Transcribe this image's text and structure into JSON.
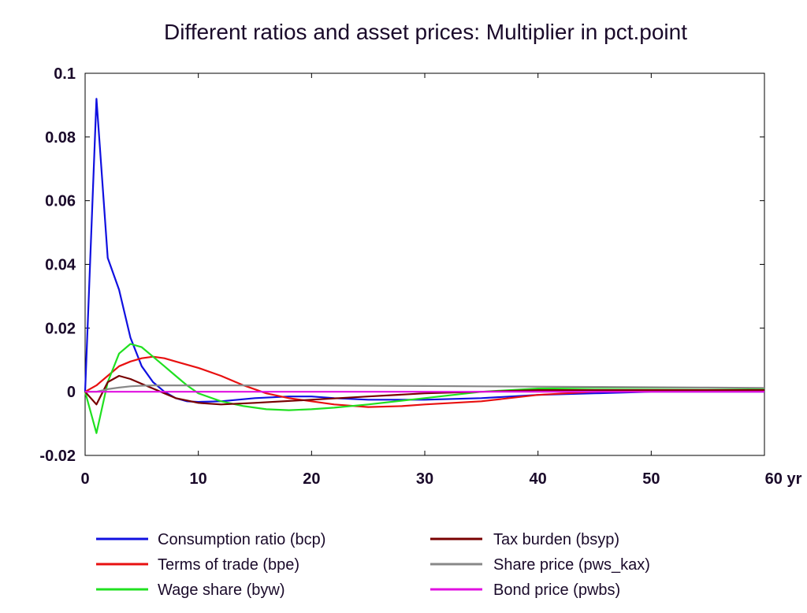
{
  "chart_data": {
    "type": "line",
    "title": "Different ratios and asset prices: Multiplier in pct.point",
    "xlabel": "",
    "ylabel": "",
    "xlim": [
      0,
      60
    ],
    "ylim": [
      -0.02,
      0.1
    ],
    "x_ticks": [
      0,
      10,
      20,
      30,
      40,
      50,
      60
    ],
    "x_tick_labels": [
      "0",
      "10",
      "20",
      "30",
      "40",
      "50",
      "60 yr"
    ],
    "y_ticks": [
      -0.02,
      0,
      0.02,
      0.04,
      0.06,
      0.08,
      0.1
    ],
    "y_tick_labels": [
      "-0.02",
      "0",
      "0.02",
      "0.04",
      "0.06",
      "0.08",
      "0.1"
    ],
    "grid": false,
    "legend_position": "bottom",
    "series": [
      {
        "name": "Consumption ratio (bcp)",
        "color": "#1010e0",
        "x": [
          0,
          1,
          2,
          3,
          4,
          5,
          6,
          7,
          8,
          9,
          10,
          12,
          15,
          18,
          20,
          22,
          25,
          30,
          35,
          40,
          45,
          50,
          55,
          60
        ],
        "values": [
          0,
          0.092,
          0.042,
          0.032,
          0.017,
          0.008,
          0.003,
          0.0,
          -0.002,
          -0.003,
          -0.0032,
          -0.003,
          -0.002,
          -0.0015,
          -0.0015,
          -0.002,
          -0.0025,
          -0.0025,
          -0.002,
          -0.001,
          -0.0005,
          0,
          0,
          0
        ]
      },
      {
        "name": "Terms of trade (bpe)",
        "color": "#e81010",
        "x": [
          0,
          1,
          2,
          3,
          4,
          5,
          6,
          7,
          8,
          10,
          12,
          14,
          16,
          18,
          20,
          22,
          25,
          28,
          30,
          35,
          40,
          45,
          50,
          55,
          60
        ],
        "values": [
          0,
          0.002,
          0.005,
          0.008,
          0.0095,
          0.0105,
          0.011,
          0.0105,
          0.0095,
          0.0075,
          0.005,
          0.002,
          -0.0005,
          -0.002,
          -0.003,
          -0.004,
          -0.0048,
          -0.0045,
          -0.004,
          -0.003,
          -0.001,
          0,
          0.0005,
          0.0005,
          0.0005
        ]
      },
      {
        "name": "Wage share (byw)",
        "color": "#20e020",
        "x": [
          0,
          1,
          2,
          3,
          4,
          5,
          6,
          7,
          8,
          9,
          10,
          12,
          14,
          16,
          18,
          20,
          22,
          25,
          30,
          35,
          40,
          45,
          50,
          55,
          60
        ],
        "values": [
          0,
          -0.013,
          0.003,
          0.012,
          0.015,
          0.014,
          0.011,
          0.008,
          0.005,
          0.002,
          -0.0005,
          -0.003,
          -0.0045,
          -0.0055,
          -0.0058,
          -0.0055,
          -0.005,
          -0.004,
          -0.002,
          0,
          0.001,
          0.0012,
          0.0012,
          0.0012,
          0.001
        ]
      },
      {
        "name": "Tax burden (bsyp)",
        "color": "#780000",
        "x": [
          0,
          1,
          2,
          3,
          4,
          5,
          6,
          7,
          8,
          10,
          12,
          15,
          20,
          25,
          30,
          35,
          40,
          45,
          50,
          55,
          60
        ],
        "values": [
          0,
          -0.004,
          0.003,
          0.005,
          0.004,
          0.0025,
          0.001,
          -0.0005,
          -0.002,
          -0.0035,
          -0.004,
          -0.0035,
          -0.0025,
          -0.0015,
          -0.0005,
          0,
          0.0005,
          0.0005,
          0.0005,
          0.0005,
          0.0005
        ]
      },
      {
        "name": "Share price (pws_kax)",
        "color": "#888888",
        "x": [
          0,
          1,
          2,
          3,
          4,
          5,
          6,
          8,
          10,
          15,
          20,
          25,
          30,
          35,
          40,
          45,
          50,
          55,
          60
        ],
        "values": [
          0,
          0,
          0.0008,
          0.0013,
          0.0017,
          0.0019,
          0.002,
          0.002,
          0.002,
          0.002,
          0.002,
          0.0019,
          0.0018,
          0.0017,
          0.0016,
          0.0015,
          0.0014,
          0.0013,
          0.0012
        ]
      },
      {
        "name": "Bond price (pwbs)",
        "color": "#e010e0",
        "x": [
          0,
          10,
          20,
          30,
          40,
          50,
          60
        ],
        "values": [
          0,
          0,
          0,
          0,
          0,
          0,
          0
        ]
      }
    ]
  }
}
